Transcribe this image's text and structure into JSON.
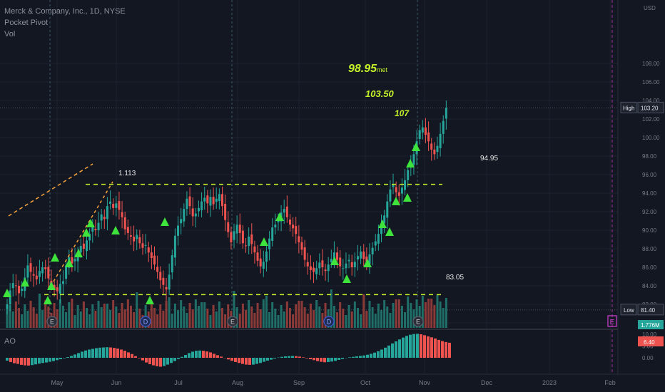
{
  "legend": {
    "symbol": "Merck & Company, Inc., 1D, NYSE",
    "indicator_1": "Pocket Pivot",
    "indicator_2": "Vol",
    "indicator_3": "AO"
  },
  "colors": {
    "background": "#131722",
    "up": "#26a69a",
    "down": "#ef5350",
    "up_vol": "#1f6f68",
    "down_vol": "#8b3a38",
    "annotation_green": "#c6f32a",
    "pivot_triangle": "#3ee33b",
    "dashed_orange": "#f5a33a"
  },
  "chart_data": [
    {
      "type": "candlestick",
      "title": "Merck & Company, Inc., 1D, NYSE",
      "ylabel": "USD",
      "y_ticks": [
        "80.00",
        "82.00",
        "84.00",
        "86.00",
        "88.00",
        "90.00",
        "92.00",
        "94.00",
        "96.00",
        "98.00",
        "100.00",
        "102.00",
        "104.00",
        "106.00",
        "108.00"
      ],
      "ylim": [
        79,
        110
      ],
      "x_ticks": [
        "May",
        "Jun",
        "Jul",
        "Aug",
        "Sep",
        "Oct",
        "Nov",
        "Dec",
        "2023",
        "Feb"
      ],
      "high_label": "High",
      "high_value": "103.20",
      "low_label": "Low",
      "low_value": "81.40",
      "volume_label": "1.776M",
      "annotations": [
        {
          "text": "98.95",
          "suffix": "met"
        },
        {
          "text": "103.50"
        },
        {
          "text": "107"
        },
        {
          "text": "1.113"
        },
        {
          "text": "94.95"
        },
        {
          "text": "83.05"
        }
      ],
      "levels": {
        "resistance": 94.95,
        "support": 83.05
      },
      "event_markers": [
        "E",
        "D",
        "E",
        "D",
        "E",
        "E"
      ],
      "closes": [
        82.0,
        83.5,
        84.3,
        84.0,
        83.2,
        83.7,
        84.9,
        86.2,
        85.5,
        85.1,
        84.7,
        85.6,
        86.0,
        85.8,
        84.8,
        84.1,
        83.6,
        83.4,
        84.2,
        84.5,
        86.2,
        87.1,
        86.4,
        86.9,
        87.6,
        88.3,
        88.0,
        88.9,
        89.6,
        90.4,
        90.0,
        90.8,
        91.7,
        91.2,
        92.6,
        93.1,
        92.4,
        92.9,
        92.2,
        91.4,
        90.1,
        89.7,
        89.3,
        88.8,
        89.5,
        88.6,
        88.1,
        88.4,
        87.6,
        87.0,
        86.3,
        85.5,
        84.6,
        84.1,
        83.6,
        85.2,
        87.3,
        89.4,
        90.5,
        91.2,
        92.3,
        93.4,
        92.6,
        91.5,
        91.8,
        92.4,
        93.1,
        93.5,
        92.9,
        93.6,
        92.8,
        93.4,
        93.9,
        92.6,
        91.1,
        89.8,
        88.7,
        89.9,
        90.6,
        89.7,
        88.6,
        88.3,
        89.3,
        88.5,
        87.6,
        86.7,
        86.1,
        86.6,
        87.7,
        89.1,
        90.3,
        90.6,
        91.2,
        91.9,
        92.3,
        91.4,
        90.6,
        90.2,
        89.6,
        88.7,
        87.9,
        86.8,
        86.1,
        85.7,
        85.5,
        85.9,
        86.5,
        86.0,
        85.6,
        86.3,
        86.9,
        87.6,
        86.8,
        86.1,
        85.9,
        86.4,
        86.8,
        86.0,
        86.6,
        87.2,
        87.7,
        86.9,
        86.6,
        87.4,
        88.1,
        88.8,
        89.6,
        90.5,
        91.6,
        93.1,
        94.4,
        94.9,
        94.1,
        93.7,
        94.6,
        95.4,
        96.5,
        97.3,
        98.2,
        99.6,
        100.8,
        101.1,
        100.3,
        99.6,
        98.7,
        98.2,
        99.1,
        100.4,
        101.8,
        103.2
      ]
    },
    {
      "type": "bar",
      "title": "AO",
      "ylabel": "",
      "y_ticks": [
        "0.00",
        "5.00",
        "10.00"
      ],
      "ylim": [
        -6,
        12
      ],
      "last_value": "6.40",
      "values": [
        -1.2,
        -1.8,
        -2.3,
        -2.6,
        -3.0,
        -3.2,
        -3.3,
        -3.1,
        -2.8,
        -2.5,
        -2.2,
        -2.0,
        -1.7,
        -1.4,
        -1.0,
        -0.6,
        -0.2,
        0.3,
        0.8,
        1.4,
        2.0,
        2.6,
        3.1,
        3.5,
        3.8,
        4.1,
        4.3,
        4.4,
        4.5,
        4.4,
        4.2,
        3.9,
        3.5,
        3.0,
        2.3,
        1.6,
        0.7,
        -0.2,
        -1.1,
        -2.0,
        -2.7,
        -3.2,
        -3.6,
        -3.8,
        -3.5,
        -2.9,
        -2.2,
        -1.4,
        -0.5,
        0.4,
        1.2,
        2.0,
        2.6,
        3.0,
        3.1,
        3.0,
        2.7,
        2.3,
        1.7,
        1.1,
        0.5,
        -0.1,
        -0.7,
        -1.3,
        -1.8,
        -2.2,
        -2.6,
        -2.9,
        -3.0,
        -2.9,
        -2.6,
        -2.2,
        -1.7,
        -1.2,
        -0.8,
        -0.3,
        0.1,
        0.4,
        0.6,
        0.7,
        0.8,
        0.7,
        0.5,
        0.2,
        -0.2,
        -0.6,
        -1.0,
        -1.4,
        -1.7,
        -1.9,
        -1.8,
        -1.6,
        -1.3,
        -0.9,
        -0.5,
        -0.1,
        0.2,
        0.4,
        0.6,
        0.8,
        1.0,
        1.3,
        1.7,
        2.2,
        2.8,
        3.5,
        4.3,
        5.2,
        6.1,
        7.0,
        7.8,
        8.6,
        9.3,
        9.8,
        10.1,
        10.2,
        10.0,
        9.6,
        9.1,
        8.7,
        8.2,
        7.6,
        7.1,
        6.7,
        6.4
      ]
    }
  ]
}
